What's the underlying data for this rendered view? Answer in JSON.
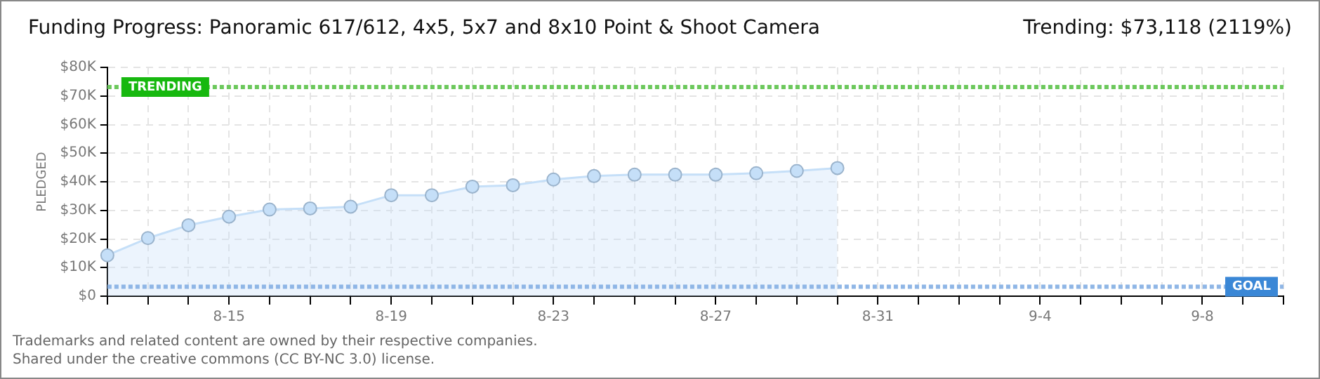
{
  "chart_data": {
    "type": "area",
    "title": "Funding Progress: Panoramic 617/612, 4x5, 5x7 and 8x10 Point & Shoot Camera",
    "subtitle": "Trending:  $73,118 (2119%)",
    "ylabel": "PLEDGED",
    "categories": [
      null,
      null,
      null,
      "8-15",
      null,
      null,
      null,
      "8-19",
      null,
      null,
      null,
      "8-23",
      null,
      null,
      null,
      "8-27",
      null,
      null,
      null,
      "8-31",
      null,
      null,
      null,
      "9-4",
      null,
      null,
      null,
      "9-8",
      null,
      null
    ],
    "series": [
      {
        "color": "#c5dff8",
        "values": [
          14300,
          20300,
          24800,
          27800,
          30300,
          30700,
          31300,
          35300,
          35300,
          38300,
          38800,
          40800,
          42000,
          42500,
          42500,
          42500,
          43000,
          43800,
          44800,
          null,
          null,
          null,
          null,
          null,
          null,
          null,
          null,
          null,
          null,
          null
        ]
      }
    ],
    "ylim": [
      0,
      80000
    ],
    "yticks": [
      {
        "value": 0,
        "label": "$0"
      },
      {
        "value": 10000,
        "label": "$10K"
      },
      {
        "value": 20000,
        "label": "$20K"
      },
      {
        "value": 30000,
        "label": "$30K"
      },
      {
        "value": 40000,
        "label": "$40K"
      },
      {
        "value": 50000,
        "label": "$50K"
      },
      {
        "value": 60000,
        "label": "$60K"
      },
      {
        "value": 70000,
        "label": "$70K"
      },
      {
        "value": 80000,
        "label": "$80K"
      }
    ],
    "ref_lines": [
      {
        "axis": "y",
        "value": 73118,
        "label": "TRENDING",
        "color": "#6cc85c",
        "line_style": "dotted"
      },
      {
        "axis": "y",
        "value": 3300,
        "label": "GOAL",
        "color": "#8fb6e6",
        "line_style": "dotted"
      }
    ],
    "grid": true,
    "legend": false,
    "marker": "circle",
    "annotations": [
      "Trademarks and related content are owned by their respective companies.",
      "Shared under the creative commons (CC BY-NC 3.0) license."
    ]
  }
}
